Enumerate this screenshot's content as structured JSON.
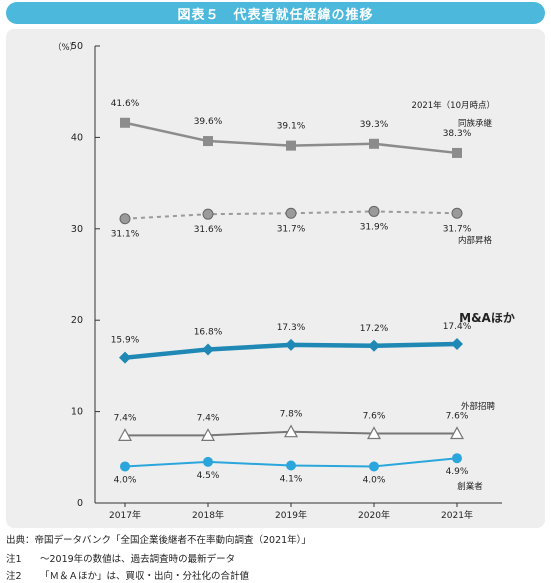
{
  "title": "図表５　代表者就任経緯の推移",
  "chart_data": {
    "type": "line",
    "title": "図表５　代表者就任経緯の推移",
    "unit_label": "（%）",
    "note": "2021年（10月時点）",
    "categories": [
      "2017年",
      "2018年",
      "2019年",
      "2020年",
      "2021年"
    ],
    "ylim": [
      0,
      50
    ],
    "yticks": [
      0,
      10,
      20,
      30,
      40,
      50
    ],
    "grid": false,
    "series": [
      {
        "name": "同族承継",
        "values": [
          41.6,
          39.6,
          39.1,
          39.3,
          38.3
        ],
        "labels": [
          "41.6%",
          "39.6%",
          "39.1%",
          "39.3%",
          "38.3%"
        ],
        "color": "#8c8c8c",
        "marker": "square"
      },
      {
        "name": "内部昇格",
        "values": [
          31.1,
          31.6,
          31.7,
          31.9,
          31.7
        ],
        "labels": [
          "31.1%",
          "31.6%",
          "31.7%",
          "31.9%",
          "31.7%"
        ],
        "color": "#9a9a9a",
        "marker": "circle",
        "dashed": true
      },
      {
        "name": "M&Aほか",
        "values": [
          15.9,
          16.8,
          17.3,
          17.2,
          17.4
        ],
        "labels": [
          "15.9%",
          "16.8%",
          "17.3%",
          "17.2%",
          "17.4%"
        ],
        "color": "#1f88b4",
        "marker": "diamond"
      },
      {
        "name": "外部招聘",
        "values": [
          7.4,
          7.4,
          7.8,
          7.6,
          7.6
        ],
        "labels": [
          "7.4%",
          "7.4%",
          "7.8%",
          "7.6%",
          "7.6%"
        ],
        "color": "#777777",
        "marker": "triangle"
      },
      {
        "name": "創業者",
        "values": [
          4.0,
          4.5,
          4.1,
          4.0,
          4.9
        ],
        "labels": [
          "4.0%",
          "4.5%",
          "4.1%",
          "4.0%",
          "4.9%"
        ],
        "color": "#2aa6dc",
        "marker": "circle"
      }
    ]
  },
  "footer": {
    "source_label": "出典：",
    "source_text": "帝国データバンク「全国企業後継者不在率動向調査（2021年）」",
    "notes": [
      {
        "label": "注1",
        "text": "～2019年の数値は、過去調査時の最新データ"
      },
      {
        "label": "注2",
        "text": "「Ｍ＆Ａほか」は、買収・出向・分社化の合計値"
      }
    ]
  }
}
